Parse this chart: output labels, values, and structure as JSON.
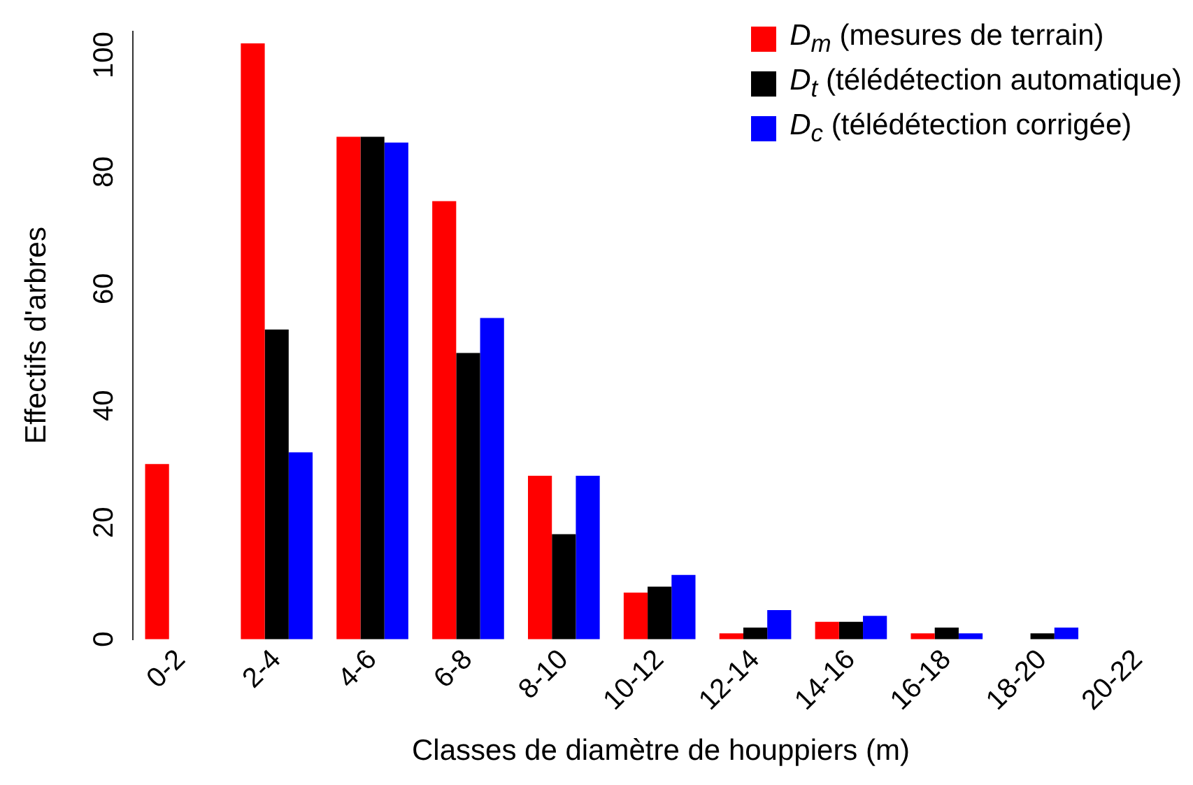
{
  "chart_data": {
    "type": "bar",
    "xlabel": "Classes de diamètre de houppiers (m)",
    "ylabel": "Effectifs d'arbres",
    "categories": [
      "0-2",
      "2-4",
      "4-6",
      "6-8",
      "8-10",
      "10-12",
      "12-14",
      "14-16",
      "16-18",
      "18-20",
      "20-22"
    ],
    "series": [
      {
        "name": "D$_{m}$ (mesures de terrain)",
        "color": "#ff0000",
        "values": [
          30,
          102,
          86,
          75,
          28,
          8,
          1,
          3,
          1,
          0,
          0
        ]
      },
      {
        "name": "D$_{t}$ (télédétection automatique)",
        "color": "#000000",
        "values": [
          0,
          53,
          86,
          49,
          18,
          9,
          2,
          3,
          2,
          1,
          0
        ]
      },
      {
        "name": "D$_{c}$ (télédétection corrigée)",
        "color": "#0000ff",
        "values": [
          0,
          32,
          85,
          55,
          28,
          11,
          5,
          4,
          1,
          2,
          0
        ]
      }
    ],
    "ylim": [
      0,
      104
    ],
    "yticks": [
      0,
      20,
      40,
      60,
      80,
      100
    ],
    "grid": false,
    "legend": "top right"
  }
}
